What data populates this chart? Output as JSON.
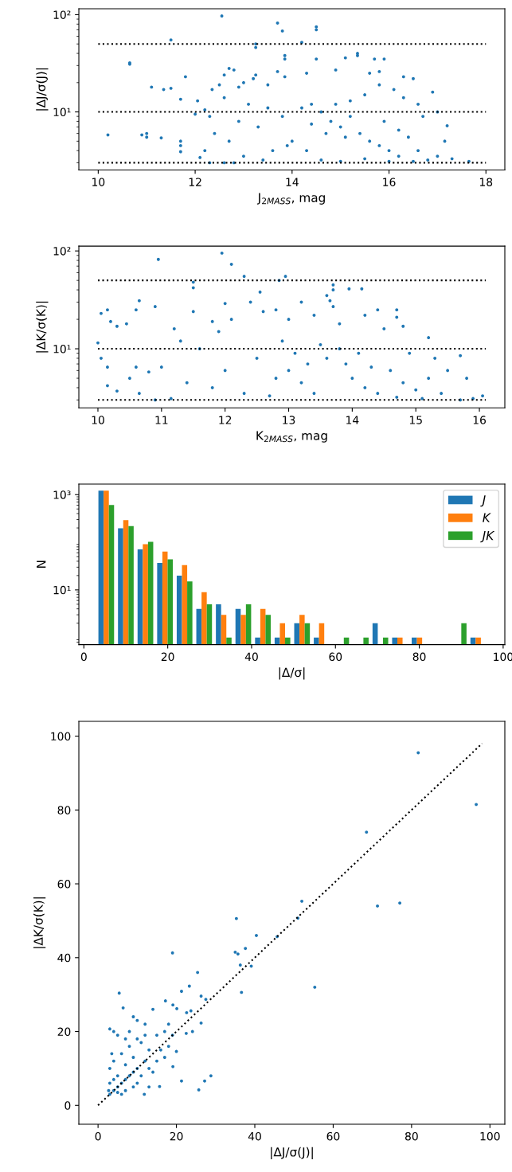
{
  "chart_data": [
    {
      "type": "scatter",
      "xlabel": "J$_{2MASS}$, mag",
      "ylabel": "|ΔJ/σ(J)|",
      "log": "y",
      "xlim": [
        9.6,
        18.39
      ],
      "ylim": [
        2.53,
        115
      ],
      "xticks": [
        10,
        12,
        14,
        16,
        18
      ],
      "yticks": [
        {
          "value": 10,
          "label": "10¹"
        },
        {
          "value": 100,
          "label": "10²"
        }
      ],
      "grid": false,
      "legend": false,
      "series": [
        {
          "type": "scatter",
          "color": "#1f77b4",
          "marker": "circle",
          "x": [
            12.55,
            13.7,
            13.8,
            14.5,
            14.5,
            11.5,
            13.25,
            13.25,
            14.2,
            10.65,
            10.65,
            11.1,
            11.35,
            11.5,
            11.8,
            11.7,
            10.2,
            10.9,
            11.0,
            11.0,
            11.3,
            11.7,
            11.7,
            11.7,
            12.0,
            12.05,
            12.2,
            12.35,
            12.3,
            12.5,
            12.6,
            12.7,
            12.8,
            12.9,
            13.0,
            13.2,
            13.25,
            13.5,
            13.7,
            13.85,
            13.85,
            13.85,
            14.3,
            14.5,
            14.9,
            15.1,
            15.35,
            15.35,
            15.7,
            15.9,
            15.6,
            15.8,
            16.3,
            16.5,
            16.9,
            17.0,
            17.2,
            17.15,
            17.3,
            17.65,
            12.3,
            12.6,
            12.8,
            14.2,
            14.4,
            14.6,
            14.8,
            15.0,
            15.2,
            15.4,
            15.6,
            15.8,
            16.0,
            16.2,
            16.4,
            16.6,
            16.8,
            17.0,
            14.0,
            14.3,
            14.6,
            15.0,
            15.5,
            16.0,
            16.5,
            13.0,
            13.3,
            13.6,
            13.9,
            12.9,
            12.7,
            13.1,
            13.5,
            14.9,
            15.2,
            15.5,
            15.8,
            16.1,
            16.3,
            16.6,
            16.7,
            15.9,
            16.2,
            15.1,
            14.7,
            14.4,
            13.8,
            12.6,
            12.4,
            12.2,
            12.1,
            13.4
          ],
          "values": [
            97,
            82,
            68,
            75,
            70,
            55,
            50,
            46,
            52,
            32,
            31,
            18,
            17,
            17.5,
            23,
            13.5,
            5.8,
            5.8,
            6,
            5.5,
            5.4,
            5,
            4.5,
            3.9,
            9.5,
            13,
            10.5,
            17,
            9,
            19,
            24,
            28,
            27,
            18,
            20,
            22,
            24,
            19,
            26,
            23,
            38,
            35,
            25,
            35,
            27,
            36,
            40,
            38,
            35,
            35,
            25,
            26,
            23,
            22,
            16,
            10,
            7.2,
            5,
            3.3,
            3.1,
            3.0,
            3.0,
            3.0,
            11,
            12,
            10,
            8,
            7,
            9,
            6,
            5,
            4.5,
            4,
            3.5,
            5.5,
            4,
            3.2,
            3.5,
            5,
            4,
            3.2,
            3.1,
            3.3,
            3.1,
            3.1,
            3.5,
            7,
            4,
            4.5,
            8,
            5,
            12,
            11,
            12,
            13,
            15,
            19,
            17,
            14,
            12,
            9,
            8,
            6.5,
            5.5,
            6,
            7.5,
            9,
            14,
            6,
            4,
            3.4,
            3.2
          ]
        },
        {
          "type": "line",
          "color": "#000000",
          "line_style": "dotted",
          "marker": "none",
          "x": [
            10,
            18
          ],
          "values": [
            3,
            3
          ]
        },
        {
          "type": "line",
          "color": "#000000",
          "line_style": "dotted",
          "marker": "none",
          "x": [
            10,
            18
          ],
          "values": [
            10,
            10
          ]
        },
        {
          "type": "line",
          "color": "#000000",
          "line_style": "dotted",
          "marker": "none",
          "x": [
            10,
            18
          ],
          "values": [
            50,
            50
          ]
        }
      ]
    },
    {
      "type": "scatter",
      "xlabel": "K$_{2MASS}$, mag",
      "ylabel": "|ΔK/σ(K)|",
      "log": "y",
      "xlim": [
        9.7,
        16.4
      ],
      "ylim": [
        2.49,
        112
      ],
      "xticks": [
        10,
        11,
        12,
        13,
        14,
        15,
        16
      ],
      "yticks": [
        {
          "value": 10,
          "label": "10¹"
        },
        {
          "value": 100,
          "label": "10²"
        }
      ],
      "grid": false,
      "legend": false,
      "series": [
        {
          "type": "scatter",
          "color": "#1f77b4",
          "marker": "circle",
          "x": [
            11.95,
            12.1,
            10.95,
            12.3,
            12.95,
            12.85,
            11.5,
            11.5,
            13.7,
            13.7,
            13.95,
            14.15,
            13.6,
            13.65,
            13.7,
            12.55,
            10.65,
            10.9,
            10.6,
            10.05,
            10.15,
            10.2,
            10.3,
            10.45,
            10.0,
            10.05,
            10.15,
            10.15,
            10.3,
            10.5,
            10.6,
            10.65,
            10.8,
            10.9,
            11.0,
            11.15,
            11.2,
            11.3,
            11.5,
            11.6,
            11.8,
            11.9,
            12.0,
            12.1,
            12.4,
            12.6,
            12.8,
            13.0,
            13.2,
            13.4,
            13.8,
            14.2,
            14.4,
            14.7,
            14.7,
            14.5,
            14.8,
            15.2,
            15.5,
            15.7,
            15.8,
            16.05,
            15.9,
            15.7,
            13.0,
            13.2,
            13.4,
            13.6,
            13.8,
            14.0,
            14.2,
            14.4,
            14.6,
            14.8,
            15.0,
            15.2,
            15.4,
            13.5,
            13.9,
            14.1,
            14.3,
            14.7,
            15.1,
            12.5,
            12.8,
            12.3,
            12.7,
            12.0,
            11.8,
            11.4,
            12.9,
            13.1,
            13.3,
            14.9,
            15.3
          ],
          "values": [
            95,
            73,
            82,
            55,
            55,
            50,
            48,
            42,
            45,
            40,
            41,
            41,
            35,
            31,
            27,
            38,
            31,
            27,
            25,
            23,
            25,
            19,
            17,
            18,
            11.5,
            8,
            6.5,
            4.2,
            3.7,
            5,
            6.5,
            3.5,
            5.8,
            3.0,
            6.5,
            3.1,
            16,
            12,
            24,
            10,
            19,
            15,
            29,
            20,
            30,
            24,
            25,
            20,
            30,
            22,
            18,
            22,
            25,
            25,
            21,
            16,
            17,
            13,
            6,
            8.5,
            5,
            3.3,
            3.1,
            3.0,
            6,
            4.5,
            3.5,
            8,
            10,
            5,
            4,
            3.5,
            6,
            4.5,
            3.8,
            5,
            3.5,
            11,
            7,
            9,
            6.5,
            3.2,
            3.1,
            8,
            5,
            3.5,
            3.3,
            6,
            4,
            4.5,
            12,
            9,
            7,
            9,
            8
          ]
        },
        {
          "type": "line",
          "color": "#000000",
          "line_style": "dotted",
          "marker": "none",
          "x": [
            10,
            16.1
          ],
          "values": [
            3,
            3
          ]
        },
        {
          "type": "line",
          "color": "#000000",
          "line_style": "dotted",
          "marker": "none",
          "x": [
            10,
            16.1
          ],
          "values": [
            10,
            10
          ]
        },
        {
          "type": "line",
          "color": "#000000",
          "line_style": "dotted",
          "marker": "none",
          "x": [
            10,
            16.1
          ],
          "values": [
            50,
            50
          ]
        }
      ]
    },
    {
      "type": "histogram",
      "xlabel": "|Δ/σ|",
      "ylabel": "N",
      "log": "y",
      "xlim": [
        -1.2,
        100.4
      ],
      "ylim": [
        0.71,
        1670
      ],
      "xticks": [
        0,
        20,
        40,
        60,
        80,
        100
      ],
      "yticks": [
        {
          "value": 10,
          "label": "10¹"
        },
        {
          "value": 1000,
          "label": "10³"
        }
      ],
      "grid": false,
      "legend": "top right",
      "bins": [
        3.0,
        7.67,
        12.34,
        17.01,
        21.68,
        26.35,
        31.02,
        35.69,
        40.36,
        45.03,
        49.7,
        54.37,
        59.04,
        63.71,
        68.38,
        73.05,
        77.72,
        82.39,
        87.06,
        91.73,
        96.4
      ],
      "series": [
        {
          "name": "J",
          "color": "#1f77b4",
          "values": [
            1211,
            196,
            71,
            37,
            20,
            4,
            5,
            4,
            1,
            1,
            2,
            1,
            null,
            null,
            2,
            1,
            1,
            null,
            null,
            1
          ]
        },
        {
          "name": "K",
          "color": "#ff7f0e",
          "values": [
            1211,
            292,
            91,
            64,
            33,
            9,
            3,
            3,
            4,
            2,
            3,
            2,
            null,
            null,
            null,
            1,
            1,
            null,
            null,
            1
          ]
        },
        {
          "name": "JK",
          "color": "#2ca02c",
          "values": [
            609,
            219,
            102,
            44,
            15,
            5,
            1,
            5,
            3,
            1,
            2,
            null,
            1,
            1,
            1,
            null,
            null,
            null,
            2,
            null
          ]
        }
      ]
    },
    {
      "type": "scatter",
      "xlabel": "|ΔJ/σ(J)|",
      "ylabel": "|ΔK/σ(K)|",
      "xlim": [
        -4.9,
        103.8
      ],
      "ylim": [
        -5.1,
        104
      ],
      "xticks": [
        0,
        20,
        40,
        60,
        80,
        100
      ],
      "yticks": [
        0,
        20,
        40,
        60,
        80,
        100
      ],
      "grid": false,
      "legend": false,
      "series": [
        {
          "type": "scatter",
          "color": "#1f77b4",
          "marker": "circle",
          "x": [
            81.7,
            96.5,
            68.5,
            71.3,
            77,
            52,
            51,
            35.3,
            40.4,
            45.7,
            35,
            35.7,
            37.6,
            36.3,
            39.1,
            36.6,
            55.3,
            19,
            25.4,
            23.3,
            21.3,
            26.3,
            27.5,
            5.4,
            6.4,
            17.2,
            19.1,
            20.1,
            22.6,
            23.7,
            26.3,
            24.1,
            22.5,
            21.3,
            25.7,
            27.2,
            28.8,
            11.8,
            13,
            15.7,
            19.1,
            3,
            4,
            5,
            7,
            9,
            10,
            12,
            14,
            15,
            16,
            17,
            18,
            19,
            20,
            3,
            4,
            5,
            6,
            7,
            8,
            9,
            10,
            3,
            4,
            5,
            6,
            7,
            8,
            9,
            10,
            11,
            12,
            13,
            14,
            11,
            12,
            3,
            5,
            7,
            9,
            6,
            4,
            3.5,
            8,
            10,
            13,
            15,
            17,
            18,
            2.7
          ],
          "values": [
            95.5,
            81.5,
            74,
            54,
            54.8,
            55.3,
            50.7,
            50.6,
            46,
            45.7,
            41.5,
            41,
            42.5,
            38,
            37.7,
            30.6,
            32,
            41.3,
            36,
            32.3,
            30.9,
            29.6,
            28.7,
            30.4,
            26.4,
            28.3,
            27.2,
            26.2,
            25.1,
            25.6,
            22.3,
            20,
            19.5,
            6.6,
            4.2,
            6.6,
            8,
            3,
            5,
            5.1,
            10.5,
            20.7,
            20,
            19,
            18,
            24,
            23,
            22,
            26,
            19,
            15,
            13,
            16,
            19,
            14.6,
            3,
            4,
            5,
            6,
            7,
            8,
            9,
            10,
            10,
            12,
            8,
            14,
            11,
            16,
            13,
            6,
            8,
            12,
            10,
            9,
            17,
            19,
            6,
            3.5,
            4,
            5,
            3,
            7,
            14,
            20,
            18,
            15,
            12,
            20,
            22,
            4
          ]
        },
        {
          "type": "line",
          "color": "#000000",
          "line_style": "dotted",
          "marker": "none",
          "x": [
            0,
            98
          ],
          "values": [
            0,
            98
          ]
        }
      ]
    }
  ]
}
